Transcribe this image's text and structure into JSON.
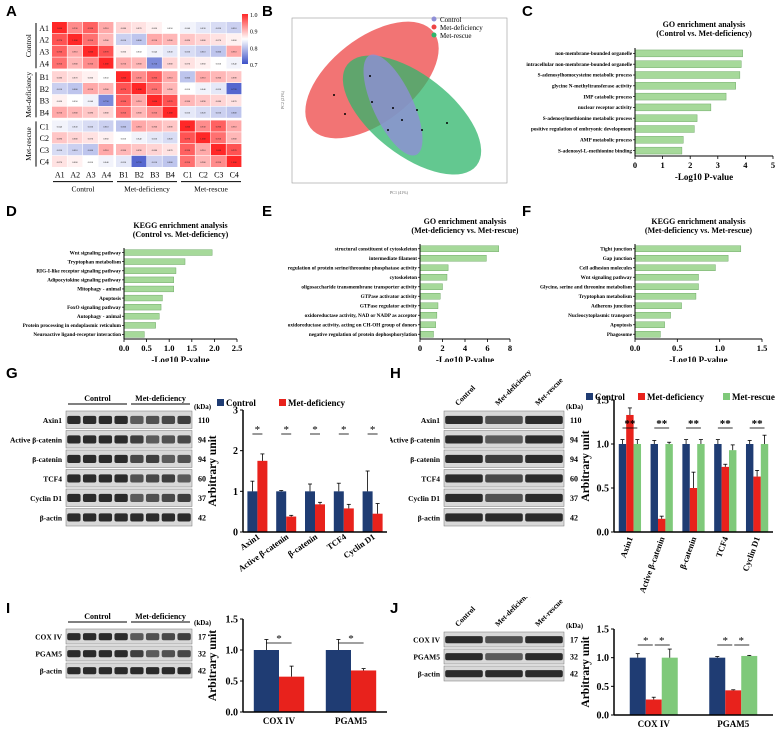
{
  "panels": {
    "A": "A",
    "B": "B",
    "C": "C",
    "D": "D",
    "E": "E",
    "F": "F",
    "G": "G",
    "H": "H",
    "I": "I",
    "J": "J"
  },
  "colors": {
    "control": "#1f3c73",
    "met_deficiency": "#e8221c",
    "met_rescue": "#7fc97a",
    "bar_green": "#a6d99a",
    "legend_control": "#8f8fd6",
    "legend_met_def": "#ee4545",
    "legend_met_rescue": "#2fb56b"
  },
  "heatmap": {
    "rows": [
      "A1",
      "A2",
      "A3",
      "A4",
      "B1",
      "B2",
      "B3",
      "B4",
      "C1",
      "C2",
      "C3",
      "C4"
    ],
    "cols": [
      "A1",
      "A2",
      "A3",
      "A4",
      "B1",
      "B2",
      "B3",
      "B4",
      "C1",
      "C2",
      "C3",
      "C4"
    ],
    "groups": [
      "Control",
      "Met-deficiency",
      "Met-rescue"
    ],
    "scale": [
      "1.0",
      "0.9",
      "0.8",
      "0.7"
    ]
  },
  "pca": {
    "legend": [
      "Control",
      "Met-deficiency",
      "Met-rescue"
    ],
    "xlabel": "PC1 (41%)",
    "ylabel": "PC2 (21%)"
  },
  "chart_data": [
    {
      "id": "C",
      "type": "bar",
      "orientation": "horizontal",
      "title": "GO enrichment analysis",
      "subtitle": "(Control vs. Met-deficiency)",
      "categories": [
        "non-membrane-bounded organelle",
        "intracellular non-membrane-bounded organelle",
        "S-adenosylhomocysteine metabolic process",
        "glycine N-methyltransferase activity",
        "IMP catabolic process",
        "nuclear receptor activity",
        "S-adenosylmethionine metabolic process",
        "positive regulation of embryonic development",
        "AMP metabolic process",
        "S-adenosyl-L-methionine binding"
      ],
      "values": [
        3.9,
        3.85,
        3.8,
        3.65,
        3.3,
        2.75,
        2.25,
        2.15,
        1.75,
        1.7
      ],
      "xlim": [
        0,
        5
      ],
      "ticks": [
        "0",
        "1",
        "2",
        "3",
        "4",
        "5"
      ],
      "xlabel": "-Log10 P-value"
    },
    {
      "id": "D",
      "type": "bar",
      "orientation": "horizontal",
      "title": "KEGG enrichment analysis",
      "subtitle": "(Control vs. Met-deficiency)",
      "categories": [
        "Wnt signaling pathway",
        "Tryptophan metabolism",
        "RIG-I-like receptor signaling pathway",
        "Adipocytokine signaling pathway",
        "Mitophagy - animal",
        "Apoptosis",
        "FoxO signaling pathway",
        "Autophagy - animal",
        "Protein processing in endoplasmic reticulum",
        "Neuroactive ligand-receptor interaction"
      ],
      "values": [
        1.95,
        1.35,
        1.15,
        1.1,
        1.1,
        0.85,
        0.82,
        0.78,
        0.7,
        0.45
      ],
      "xlim": [
        0,
        2.5
      ],
      "ticks": [
        "0.0",
        "0.5",
        "1.0",
        "1.5",
        "2.0",
        "2.5"
      ],
      "xlabel": "-Log10 P-value"
    },
    {
      "id": "E",
      "type": "bar",
      "orientation": "horizontal",
      "title": "GO enrichment analysis",
      "subtitle": "(Met-deficiency vs. Met-rescue)",
      "categories": [
        "structural constituent of cytoskeleton",
        "intermediate filament",
        "regulation of protein serine/threonine phosphatase activity",
        "cytoskeleton",
        "oligosaccharide transmembrane transporter activity",
        "GTPase activator activity",
        "GTPase regulator activity",
        "oxidoreductase activity, NAD or NADP as acceptor",
        "oxidoreductase activity, acting on CH-OH group of donors",
        "negative regulation of protein dephosphorylation"
      ],
      "values": [
        7.0,
        5.9,
        2.5,
        2.4,
        2.0,
        1.8,
        1.6,
        1.5,
        1.4,
        1.2
      ],
      "xlim": [
        0,
        8
      ],
      "ticks": [
        "0",
        "2",
        "4",
        "6",
        "8"
      ],
      "xlabel": "-Log10 P-value"
    },
    {
      "id": "F",
      "type": "bar",
      "orientation": "horizontal",
      "title": "KEGG enrichment analysis",
      "subtitle": "(Met-deficiency vs. Met-rescue)",
      "categories": [
        "Tight junction",
        "Gap junction",
        "Cell adhesion molecules",
        "Wnt signaling pathway",
        "Glycine, serine and threonine metabolism",
        "Tryptophan metabolism",
        "Adherens junction",
        "Nucleocytoplasmic transport",
        "Apoptosis",
        "Phagosome"
      ],
      "values": [
        1.25,
        1.1,
        0.95,
        0.75,
        0.75,
        0.72,
        0.55,
        0.42,
        0.35,
        0.3
      ],
      "xlim": [
        0,
        1.5
      ],
      "ticks": [
        "0.0",
        "0.5",
        "1.0",
        "1.5"
      ],
      "xlabel": "-Log10 P-value"
    },
    {
      "id": "G",
      "type": "bar",
      "title": "",
      "ylabel": "Arbitrary unit",
      "ylim": [
        0,
        3
      ],
      "ticks": [
        "0",
        "1",
        "2",
        "3"
      ],
      "categories": [
        "Axin1",
        "Active β-catenin",
        "β-catenin",
        "TCF4",
        "Cyclin D1"
      ],
      "series": [
        {
          "name": "Control",
          "values": [
            1.0,
            1.0,
            1.0,
            1.0,
            1.0
          ],
          "err": [
            0.25,
            0.02,
            0.18,
            0.2,
            0.5
          ]
        },
        {
          "name": "Met-deficiency",
          "values": [
            1.75,
            0.38,
            0.68,
            0.58,
            0.45
          ],
          "err": [
            0.17,
            0.03,
            0.05,
            0.1,
            0.25
          ]
        }
      ],
      "sig": [
        "*",
        "*",
        "*",
        "*",
        "*"
      ]
    },
    {
      "id": "H",
      "type": "bar",
      "title": "",
      "ylabel": "Arbitrary unit",
      "ylim": [
        0,
        1.5
      ],
      "ticks": [
        "0.0",
        "0.5",
        "1.0",
        "1.5"
      ],
      "categories": [
        "Axin1",
        "Active β-catenin",
        "β-catenin",
        "TCF4",
        "Cyclin D1"
      ],
      "series": [
        {
          "name": "Control",
          "values": [
            1.0,
            1.0,
            1.0,
            1.0,
            1.0
          ],
          "err": [
            0.05,
            0.04,
            0.05,
            0.05,
            0.04
          ]
        },
        {
          "name": "Met-deficiency",
          "values": [
            1.33,
            0.15,
            0.5,
            0.74,
            0.63
          ],
          "err": [
            0.08,
            0.03,
            0.18,
            0.03,
            0.07
          ]
        },
        {
          "name": "Met-rescue",
          "values": [
            1.0,
            1.0,
            1.0,
            0.93,
            1.0
          ],
          "err": [
            0.05,
            0.02,
            0.05,
            0.06,
            0.1
          ]
        }
      ],
      "sig": [
        "**",
        "**",
        "**",
        "**",
        "**"
      ]
    },
    {
      "id": "I",
      "type": "bar",
      "title": "",
      "ylabel": "Arbitrary unit",
      "ylim": [
        0,
        1.5
      ],
      "ticks": [
        "0.0",
        "0.5",
        "1.0",
        "1.5"
      ],
      "categories": [
        "COX IV",
        "PGAM5"
      ],
      "series": [
        {
          "name": "Control",
          "values": [
            1.0,
            1.0
          ],
          "err": [
            0.17,
            0.17
          ]
        },
        {
          "name": "Met-deficiency",
          "values": [
            0.57,
            0.67
          ],
          "err": [
            0.17,
            0.03
          ]
        }
      ],
      "sig": [
        "*",
        "*"
      ]
    },
    {
      "id": "J",
      "type": "bar",
      "title": "",
      "ylabel": "Arbitrary unit",
      "ylim": [
        0,
        1.5
      ],
      "ticks": [
        "0.0",
        "0.5",
        "1.0",
        "1.5"
      ],
      "categories": [
        "COX IV",
        "PGAM5"
      ],
      "series": [
        {
          "name": "Control",
          "values": [
            1.0,
            1.0
          ],
          "err": [
            0.07,
            0.02
          ]
        },
        {
          "name": "Met-deficiency",
          "values": [
            0.27,
            0.43
          ],
          "err": [
            0.04,
            0.01
          ]
        },
        {
          "name": "Met-rescue",
          "values": [
            1.0,
            1.03
          ],
          "err": [
            0.15,
            0.01
          ]
        }
      ],
      "sig": [
        "*",
        "*"
      ]
    }
  ],
  "blots": {
    "G": {
      "groups": [
        "Control",
        "Met-deficiency"
      ],
      "kda_label": "(kDa)",
      "rows": [
        {
          "name": "Axin1",
          "kda": "110"
        },
        {
          "name": "Active β-catenin",
          "kda": "94"
        },
        {
          "name": "β-catenin",
          "kda": "94"
        },
        {
          "name": "TCF4",
          "kda": "60"
        },
        {
          "name": "Cyclin D1",
          "kda": "37"
        },
        {
          "name": "β-actin",
          "kda": "42"
        }
      ]
    },
    "H": {
      "groups": [
        "Control",
        "Met-deficiency",
        "Met-rescue"
      ],
      "kda_label": "(kDa)",
      "rows": [
        {
          "name": "Axin1",
          "kda": "110"
        },
        {
          "name": "Active β-catenin",
          "kda": "94"
        },
        {
          "name": "β-catenin",
          "kda": "94"
        },
        {
          "name": "TCF4",
          "kda": "60"
        },
        {
          "name": "Cyclin D1",
          "kda": "37"
        },
        {
          "name": "β-actin",
          "kda": "42"
        }
      ]
    },
    "I": {
      "groups": [
        "Control",
        "Met-deficiency"
      ],
      "kda_label": "(kDa)",
      "rows": [
        {
          "name": "COX IV",
          "kda": "17"
        },
        {
          "name": "PGAM5",
          "kda": "32"
        },
        {
          "name": "β-actin",
          "kda": "42"
        }
      ]
    },
    "J": {
      "groups": [
        "Control",
        "Met-deficiency",
        "Met-rescue"
      ],
      "kda_label": "(kDa)",
      "rows": [
        {
          "name": "COX IV",
          "kda": "17"
        },
        {
          "name": "PGAM5",
          "kda": "32"
        },
        {
          "name": "β-actin",
          "kda": "42"
        }
      ]
    }
  }
}
